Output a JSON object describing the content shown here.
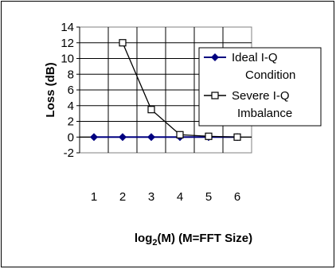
{
  "chart_data": {
    "type": "line",
    "title": "",
    "xlabel": {
      "prefix": "log",
      "subscript": "2",
      "suffix": "(M)  (M=FFT Size)"
    },
    "ylabel": "Loss (dB)",
    "x": [
      1,
      2,
      3,
      4,
      5,
      6
    ],
    "x_ticks": [
      "1",
      "2",
      "3",
      "4",
      "5",
      "6"
    ],
    "xlim": [
      0.5,
      6.5
    ],
    "ylim": [
      -2,
      14
    ],
    "y_ticks": [
      -2,
      0,
      2,
      4,
      6,
      8,
      10,
      12,
      14
    ],
    "grid": true,
    "legend_position": "top-right",
    "series": [
      {
        "name_lines": [
          "Ideal I-Q",
          "Condition"
        ],
        "x": [
          1,
          2,
          3,
          4,
          5,
          6
        ],
        "values": [
          0,
          0,
          0,
          0,
          0,
          0
        ],
        "color": "#000080",
        "marker": "filled-diamond"
      },
      {
        "name_lines": [
          "Severe I-Q",
          "Imbalance"
        ],
        "x": [
          2,
          3,
          4,
          5,
          6
        ],
        "values": [
          12,
          3.5,
          0.3,
          0.1,
          0
        ],
        "color": "#000000",
        "marker": "open-square"
      }
    ]
  }
}
